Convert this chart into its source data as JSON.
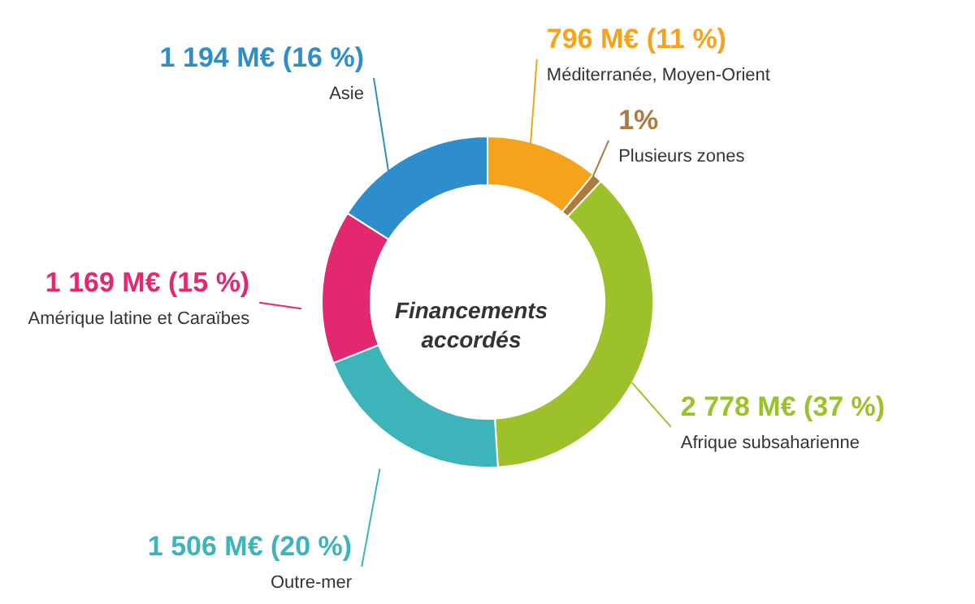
{
  "chart_data": {
    "type": "donut",
    "title": "Financements accordés",
    "categories": [
      "Méditerranée, Moyen-Orient",
      "Plusieurs zones",
      "Afrique subsaharienne",
      "Outre-mer",
      "Amérique latine et Caraïbes",
      "Asie"
    ],
    "values": [
      11,
      1,
      37,
      20,
      15,
      16
    ],
    "colors": [
      "#f5a31c",
      "#b07a3c",
      "#9cc12b",
      "#3cb4ba",
      "#e2286f",
      "#2d8ecb"
    ],
    "value_labels": [
      "796 M€ (11 %)",
      "1%",
      "2 778 M€ (37 %)",
      "1 506 M€ (20 %)",
      "1 169 M€ (15 %)",
      "1 194 M€ (16 %)"
    ]
  }
}
